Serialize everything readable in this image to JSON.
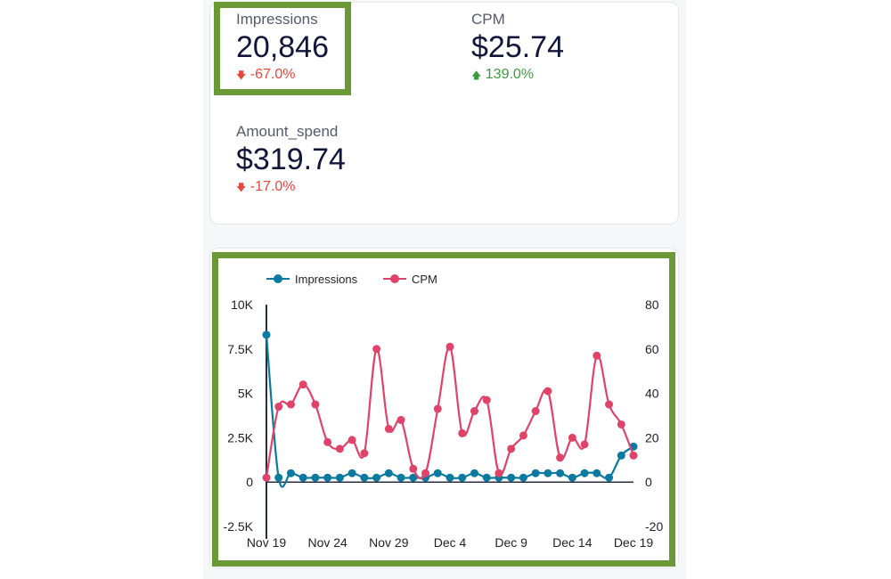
{
  "kpis": [
    {
      "label": "Impressions",
      "value": "20,846",
      "change": "-67.0%",
      "direction": "down"
    },
    {
      "label": "CPM",
      "value": "$25.74",
      "change": "139.0%",
      "direction": "up"
    },
    {
      "label": "Amount_spend",
      "value": "$319.74",
      "change": "-17.0%",
      "direction": "down"
    }
  ],
  "chart_data": {
    "type": "line",
    "legend": [
      "Impressions",
      "CPM"
    ],
    "colors": {
      "Impressions": "#0b7aa0",
      "CPM": "#e0436a"
    },
    "x_tick_labels": [
      "Nov 19",
      "Nov 24",
      "Nov 29",
      "Dec 4",
      "Dec 9",
      "Dec 14",
      "Dec 19"
    ],
    "y_left_ticks": [
      "10K",
      "7.5K",
      "5K",
      "2.5K",
      "0",
      "-2.5K"
    ],
    "y_right_ticks": [
      "80",
      "60",
      "40",
      "20",
      "0",
      "-20"
    ],
    "y_left_range": [
      -2500,
      10000
    ],
    "y_right_range": [
      -20,
      80
    ],
    "series": [
      {
        "name": "Impressions",
        "axis": "left",
        "values": [
          8300,
          250,
          500,
          250,
          250,
          250,
          250,
          500,
          250,
          250,
          500,
          250,
          250,
          250,
          500,
          250,
          250,
          500,
          250,
          250,
          250,
          250,
          500,
          500,
          500,
          250,
          500,
          500,
          250,
          1500,
          2000
        ]
      },
      {
        "name": "CPM",
        "axis": "right",
        "values": [
          2,
          34,
          35,
          44,
          35,
          18,
          15,
          19,
          13,
          60,
          24,
          28,
          6,
          4,
          33,
          61,
          22,
          32,
          37,
          4,
          15,
          21,
          32,
          41,
          11,
          20,
          17,
          57,
          35,
          26,
          12
        ]
      }
    ]
  }
}
